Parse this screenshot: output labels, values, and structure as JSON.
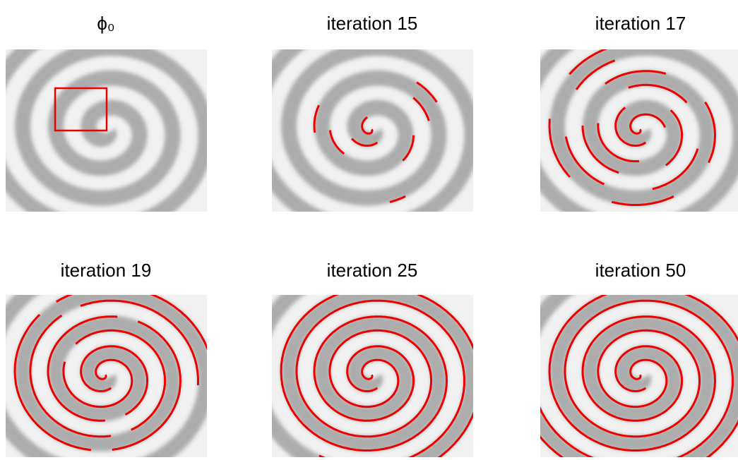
{
  "panels": [
    {
      "title": "ϕ₀"
    },
    {
      "title": "iteration 15"
    },
    {
      "title": "iteration 17"
    },
    {
      "title": "iteration 19"
    },
    {
      "title": "iteration 25"
    },
    {
      "title": "iteration 50"
    }
  ]
}
